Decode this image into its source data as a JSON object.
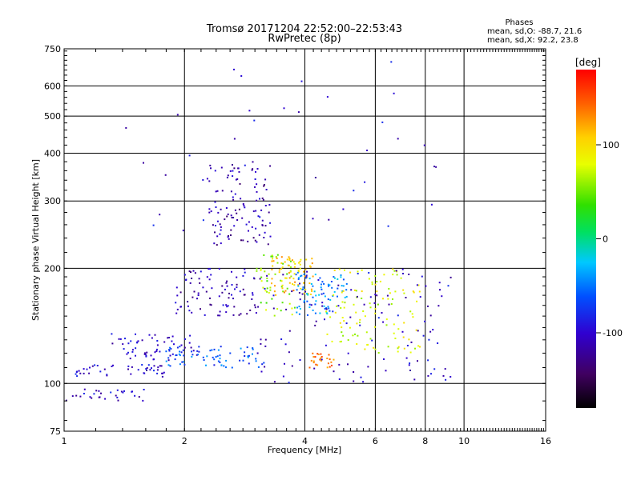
{
  "chart_data": {
    "type": "scatter",
    "title": "Tromsø 20171204 22:52:00–22:53:43",
    "subtitle": "RwPretec (8p)",
    "xlabel": "Frequency [MHz]",
    "ylabel": "Stationary phase Virtual Height [km]",
    "xscale": "log",
    "yscale": "log",
    "xlim": [
      1,
      16
    ],
    "ylim": [
      75,
      750
    ],
    "xticks": [
      1,
      2,
      4,
      6,
      8,
      10,
      16
    ],
    "xtick_labels": [
      "1",
      "2",
      "4",
      "6",
      "8",
      "10",
      "16"
    ],
    "yticks": [
      75,
      100,
      200,
      300,
      400,
      500,
      600,
      750
    ],
    "ytick_labels": [
      "75",
      "100",
      "200",
      "300",
      "400",
      "500",
      "600",
      "750"
    ],
    "grid": true,
    "legend": {
      "heading": "Phases",
      "stats": [
        "mean, sd,O: -88.7, 21.6",
        "mean, sd,X:  92.2, 23.8"
      ],
      "placement": "top-right"
    },
    "colorbar": {
      "label": "[deg]",
      "ticks": [
        100,
        0,
        -100
      ],
      "tick_labels": [
        "100",
        "0",
        "-100"
      ],
      "range": [
        -180,
        180
      ]
    },
    "points_description_clusters": [
      {
        "freq_range": [
          1.0,
          1.6
        ],
        "height_range": [
          90,
          97
        ],
        "phase": -100,
        "count": 30
      },
      {
        "freq_range": [
          1.05,
          1.8
        ],
        "height_range": [
          104,
          112
        ],
        "phase": -100,
        "count": 45
      },
      {
        "freq_range": [
          1.3,
          2.2
        ],
        "height_range": [
          115,
          135
        ],
        "phase": -100,
        "count": 60
      },
      {
        "freq_range": [
          1.8,
          3.2
        ],
        "height_range": [
          110,
          125
        ],
        "phase": -60,
        "count": 70
      },
      {
        "freq_range": [
          1.9,
          3.1
        ],
        "height_range": [
          150,
          200
        ],
        "phase": -110,
        "count": 90
      },
      {
        "freq_range": [
          2.3,
          3.3
        ],
        "height_range": [
          230,
          380
        ],
        "phase": -115,
        "count": 110
      },
      {
        "freq_range": [
          3.0,
          3.8
        ],
        "height_range": [
          150,
          220
        ],
        "phase": 60,
        "count": 50
      },
      {
        "freq_range": [
          3.3,
          4.2
        ],
        "height_range": [
          170,
          215
        ],
        "phase": 110,
        "count": 70
      },
      {
        "freq_range": [
          3.8,
          5.2
        ],
        "height_range": [
          150,
          195
        ],
        "phase": -40,
        "count": 80
      },
      {
        "freq_range": [
          4.1,
          4.8
        ],
        "height_range": [
          110,
          120
        ],
        "phase": 140,
        "count": 25
      },
      {
        "freq_range": [
          4.5,
          7.8
        ],
        "height_range": [
          120,
          200
        ],
        "phase": 80,
        "count": 110
      },
      {
        "freq_range": [
          3.0,
          9.3
        ],
        "height_range": [
          100,
          200
        ],
        "phase": -100,
        "count": 120
      },
      {
        "freq_range": [
          1.4,
          9.0
        ],
        "height_range": [
          250,
          700
        ],
        "phase": -100,
        "count": 40
      }
    ]
  }
}
